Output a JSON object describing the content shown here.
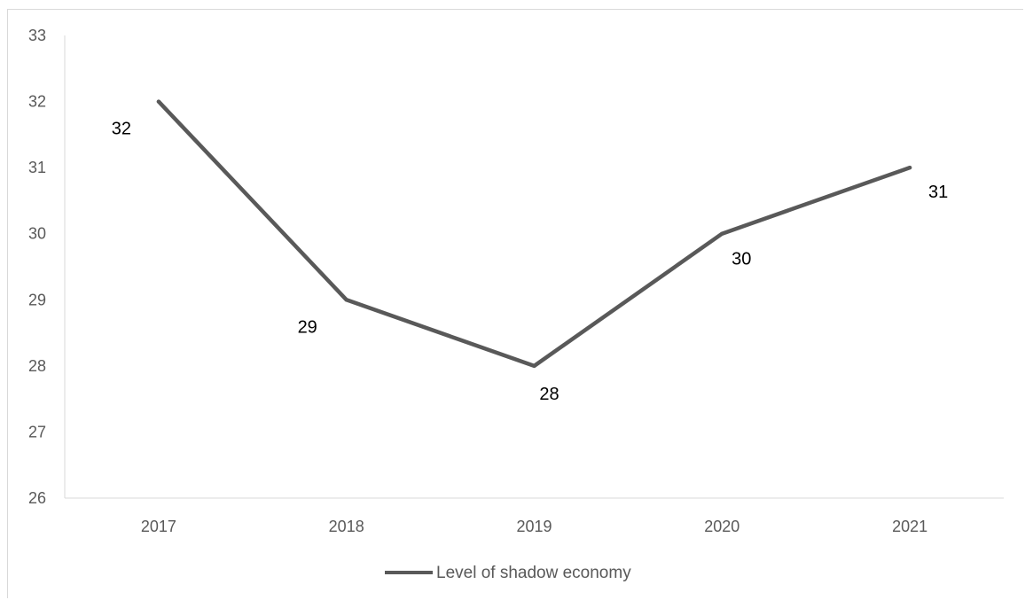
{
  "chart_data": {
    "type": "line",
    "title": "",
    "xlabel": "",
    "ylabel": "",
    "categories": [
      "2017",
      "2018",
      "2019",
      "2020",
      "2021"
    ],
    "series": [
      {
        "name": "Level of shadow economy",
        "values": [
          32,
          29,
          28,
          30,
          31
        ],
        "color": "#595959"
      }
    ],
    "data_labels": [
      "32",
      "29",
      "28",
      "30",
      "31"
    ],
    "ylim": [
      26,
      33
    ],
    "yticks": [
      "26",
      "27",
      "28",
      "29",
      "30",
      "31",
      "32",
      "33"
    ],
    "grid": false,
    "legend_position": "bottom"
  }
}
